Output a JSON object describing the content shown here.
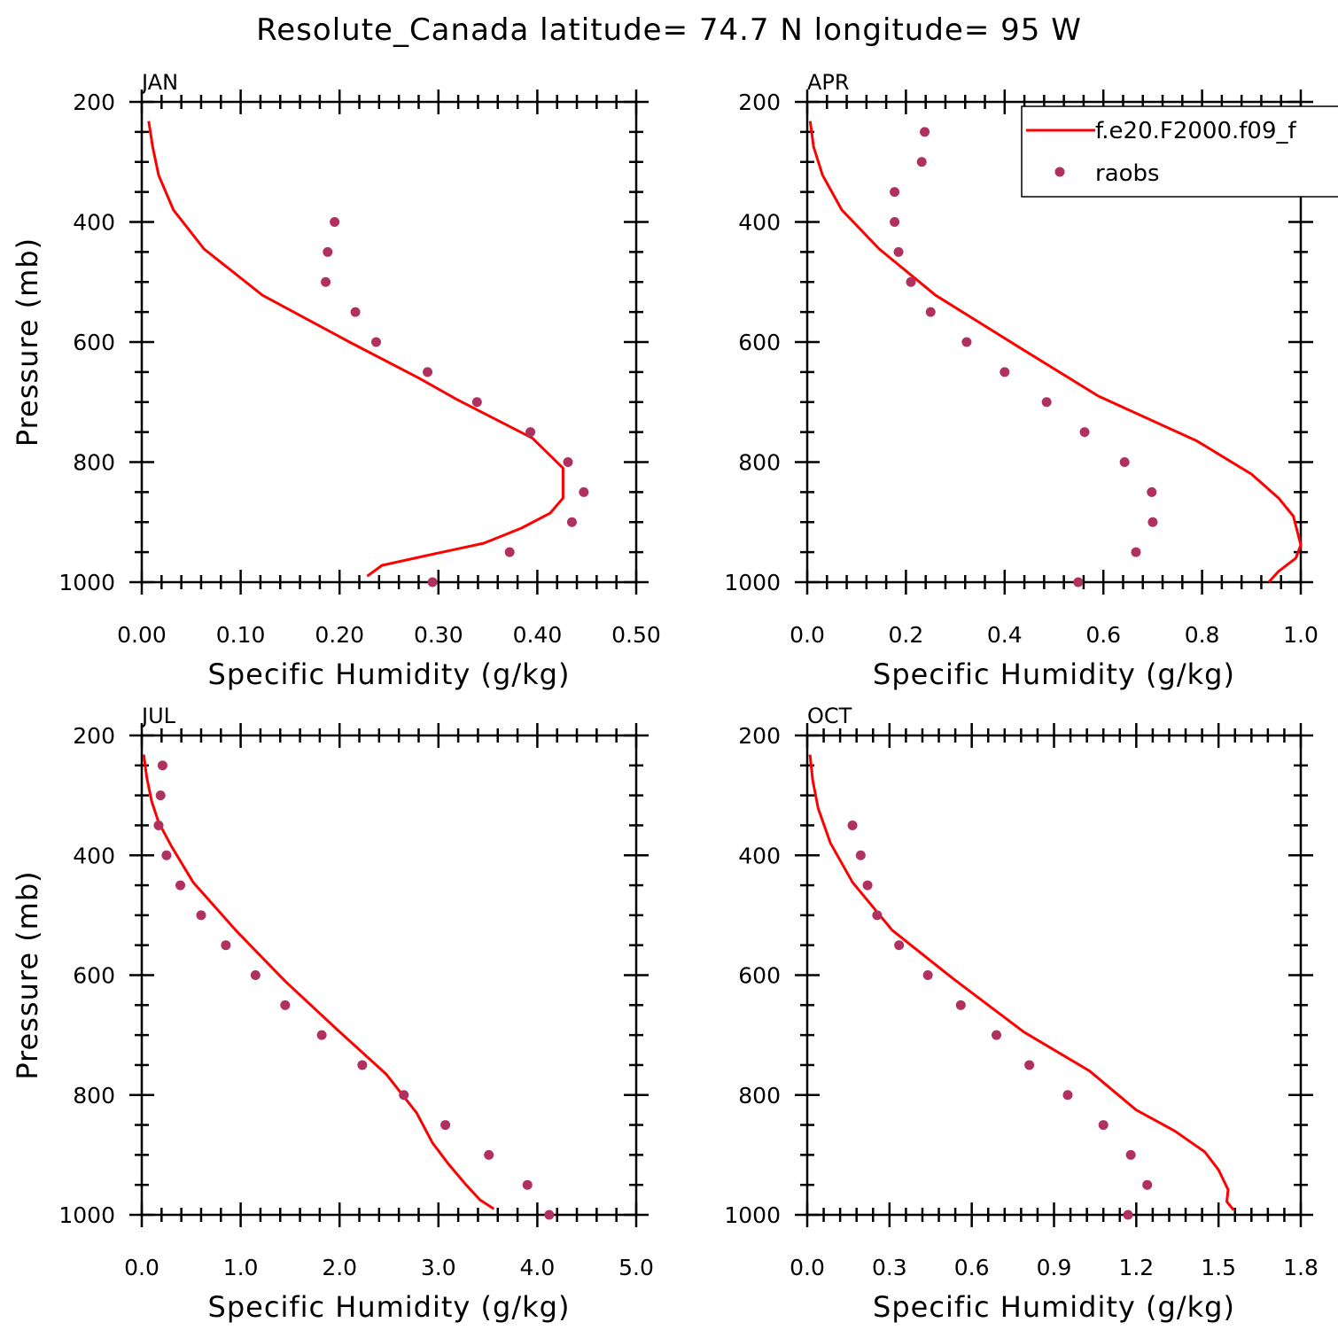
{
  "figure": {
    "title": "Resolute_Canada  latitude= 74.7 N longitude= 95 W"
  },
  "colors": {
    "model_line": "#ff0000",
    "raobs_marker": "#b03060",
    "axes": "#000000"
  },
  "legend": {
    "placement": "top-right of APR panel",
    "items": [
      {
        "label": "f.e20.F2000.f09_f",
        "type": "line",
        "color": "#ff0000"
      },
      {
        "label": "raobs",
        "type": "marker",
        "color": "#b03060"
      }
    ]
  },
  "chart_data": [
    {
      "type": "line",
      "panel_label": "JAN",
      "xlabel": "Specific Humidity (g/kg)",
      "ylabel": "Pressure (mb)",
      "xlim": [
        0,
        0.5
      ],
      "ylim": [
        1000,
        200
      ],
      "y_inverted": true,
      "xticks": [
        0,
        0.1,
        0.2,
        0.3,
        0.4,
        0.5
      ],
      "xtick_labels": [
        "0.00",
        "0.10",
        "0.20",
        "0.30",
        "0.40",
        "0.50"
      ],
      "yticks": [
        200,
        400,
        600,
        800,
        1000
      ],
      "ytick_labels": [
        "200",
        "400",
        "600",
        "800",
        "1000"
      ],
      "series": [
        {
          "name": "f.e20.F2000.f09_f",
          "kind": "line",
          "x": [
            0.007,
            0.011,
            0.017,
            0.032,
            0.063,
            0.122,
            0.21,
            0.28,
            0.318,
            0.395,
            0.426,
            0.426,
            0.413,
            0.384,
            0.346,
            0.29,
            0.243,
            0.228
          ],
          "y": [
            232,
            275,
            322,
            380,
            445,
            522,
            600,
            660,
            695,
            760,
            810,
            860,
            885,
            910,
            935,
            955,
            972,
            990
          ]
        },
        {
          "name": "raobs",
          "kind": "scatter",
          "x": [
            0.195,
            0.188,
            0.186,
            0.216,
            0.237,
            0.289,
            0.339,
            0.393,
            0.431,
            0.447,
            0.435,
            0.372,
            0.294
          ],
          "y": [
            400,
            450,
            500,
            550,
            600,
            650,
            700,
            750,
            800,
            850,
            900,
            950,
            1000
          ]
        }
      ]
    },
    {
      "type": "line",
      "panel_label": "APR",
      "xlabel": "Specific Humidity (g/kg)",
      "ylabel": "",
      "xlim": [
        0,
        1.0
      ],
      "ylim": [
        1000,
        200
      ],
      "y_inverted": true,
      "xticks": [
        0,
        0.2,
        0.4,
        0.6,
        0.8,
        1.0
      ],
      "xtick_labels": [
        "0.0",
        "0.2",
        "0.4",
        "0.6",
        "0.8",
        "1.0"
      ],
      "yticks": [
        200,
        400,
        600,
        800,
        1000
      ],
      "ytick_labels": [
        "200",
        "400",
        "600",
        "800",
        "1000"
      ],
      "series": [
        {
          "name": "f.e20.F2000.f09_f",
          "kind": "line",
          "x": [
            0.006,
            0.013,
            0.031,
            0.07,
            0.146,
            0.26,
            0.432,
            0.59,
            0.79,
            0.9,
            0.955,
            0.985,
            1.0,
            0.99,
            0.955,
            0.935
          ],
          "y": [
            232,
            275,
            322,
            380,
            445,
            522,
            610,
            690,
            765,
            820,
            860,
            890,
            938,
            960,
            982,
            1000
          ]
        },
        {
          "name": "raobs",
          "kind": "scatter",
          "x": [
            0.238,
            0.232,
            0.177,
            0.177,
            0.185,
            0.21,
            0.25,
            0.323,
            0.4,
            0.485,
            0.562,
            0.643,
            0.698,
            0.7,
            0.666,
            0.549
          ],
          "y": [
            250,
            300,
            350,
            400,
            450,
            500,
            550,
            600,
            650,
            700,
            750,
            800,
            850,
            900,
            950,
            1000
          ]
        }
      ]
    },
    {
      "type": "line",
      "panel_label": "JUL",
      "xlabel": "Specific Humidity (g/kg)",
      "ylabel": "Pressure (mb)",
      "xlim": [
        0,
        5.0
      ],
      "ylim": [
        1000,
        200
      ],
      "y_inverted": true,
      "xticks": [
        0,
        1,
        2,
        3,
        4,
        5
      ],
      "xtick_labels": [
        "0.0",
        "1.0",
        "2.0",
        "3.0",
        "4.0",
        "5.0"
      ],
      "yticks": [
        200,
        400,
        600,
        800,
        1000
      ],
      "ytick_labels": [
        "200",
        "400",
        "600",
        "800",
        "1000"
      ],
      "series": [
        {
          "name": "f.e20.F2000.f09_f",
          "kind": "line",
          "x": [
            0.02,
            0.05,
            0.1,
            0.17,
            0.3,
            0.52,
            0.95,
            1.45,
            1.97,
            2.47,
            2.78,
            2.94,
            3.1,
            3.28,
            3.42,
            3.56
          ],
          "y": [
            232,
            270,
            310,
            345,
            385,
            445,
            525,
            610,
            690,
            765,
            830,
            880,
            915,
            950,
            975,
            990
          ]
        },
        {
          "name": "raobs",
          "kind": "scatter",
          "x": [
            0.21,
            0.19,
            0.17,
            0.25,
            0.39,
            0.6,
            0.85,
            1.15,
            1.45,
            1.82,
            2.23,
            2.65,
            3.07,
            3.51,
            3.9,
            4.12
          ],
          "y": [
            250,
            300,
            350,
            400,
            450,
            500,
            550,
            600,
            650,
            700,
            750,
            800,
            850,
            900,
            950,
            1000
          ]
        }
      ]
    },
    {
      "type": "line",
      "panel_label": "OCT",
      "xlabel": "Specific Humidity (g/kg)",
      "ylabel": "",
      "xlim": [
        0,
        1.8
      ],
      "ylim": [
        1000,
        200
      ],
      "y_inverted": true,
      "xticks": [
        0,
        0.3,
        0.6,
        0.9,
        1.2,
        1.5,
        1.8
      ],
      "xtick_labels": [
        "0.0",
        "0.3",
        "0.6",
        "0.9",
        "1.2",
        "1.5",
        "1.8"
      ],
      "yticks": [
        200,
        400,
        600,
        800,
        1000
      ],
      "ytick_labels": [
        "200",
        "400",
        "600",
        "800",
        "1000"
      ],
      "series": [
        {
          "name": "f.e20.F2000.f09_f",
          "kind": "line",
          "x": [
            0.01,
            0.02,
            0.04,
            0.085,
            0.165,
            0.31,
            0.53,
            0.79,
            1.03,
            1.2,
            1.34,
            1.45,
            1.5,
            1.535,
            1.53,
            1.555
          ],
          "y": [
            232,
            275,
            322,
            380,
            445,
            525,
            605,
            695,
            760,
            825,
            860,
            895,
            925,
            958,
            978,
            992
          ]
        },
        {
          "name": "raobs",
          "kind": "scatter",
          "x": [
            0.165,
            0.195,
            0.22,
            0.255,
            0.335,
            0.44,
            0.56,
            0.69,
            0.81,
            0.95,
            1.08,
            1.18,
            1.24,
            1.17
          ],
          "y": [
            350,
            400,
            450,
            500,
            550,
            600,
            650,
            700,
            750,
            800,
            850,
            900,
            950,
            1000
          ]
        }
      ]
    }
  ]
}
